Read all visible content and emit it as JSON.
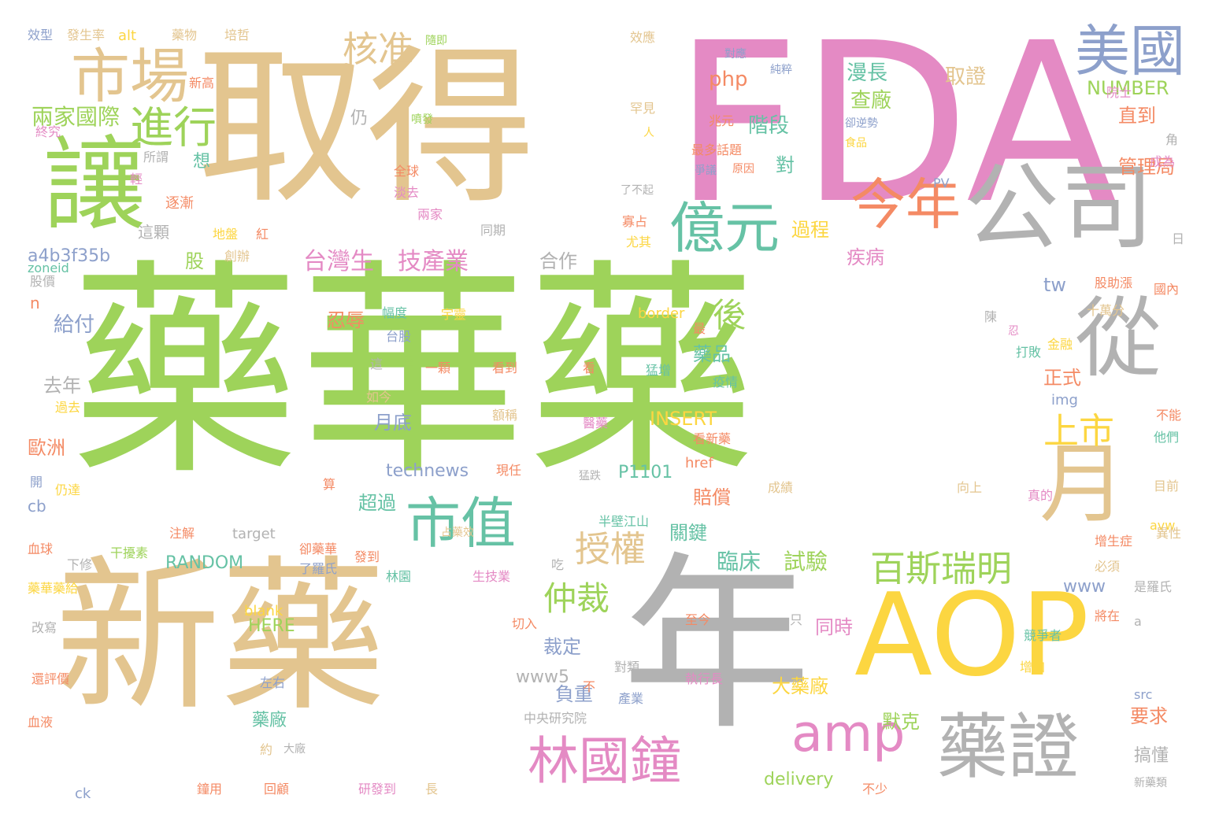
{
  "palette": {
    "green": "#9ed35a",
    "tan": "#e3c58f",
    "gray": "#b2b2b2",
    "pink": "#e48ac4",
    "yellow": "#fcd641",
    "orange": "#f48a64",
    "teal": "#66c2a5",
    "blue": "#8da0cb"
  },
  "words": [
    {
      "text": "藥華藥",
      "color": "green"
    },
    {
      "text": "FDA",
      "color": "pink"
    },
    {
      "text": "取得",
      "color": "tan"
    },
    {
      "text": "新藥",
      "color": "tan"
    },
    {
      "text": "年",
      "color": "gray"
    },
    {
      "text": "AOP",
      "color": "yellow"
    },
    {
      "text": "讓",
      "color": "green"
    },
    {
      "text": "公司",
      "color": "gray"
    },
    {
      "text": "從",
      "color": "gray"
    },
    {
      "text": "月",
      "color": "tan"
    },
    {
      "text": "藥證",
      "color": "gray"
    },
    {
      "text": "市場",
      "color": "tan"
    },
    {
      "text": "美國",
      "color": "blue"
    },
    {
      "text": "億元",
      "color": "teal"
    },
    {
      "text": "今年",
      "color": "orange"
    },
    {
      "text": "市值",
      "color": "teal"
    },
    {
      "text": "林國鐘",
      "color": "pink"
    },
    {
      "text": "amp",
      "color": "pink"
    },
    {
      "text": "進行",
      "color": "green"
    },
    {
      "text": "核准",
      "color": "tan"
    },
    {
      "text": "授權",
      "color": "tan"
    },
    {
      "text": "百斯瑞明",
      "color": "green"
    },
    {
      "text": "上市",
      "color": "yellow"
    },
    {
      "text": "仲裁",
      "color": "green"
    },
    {
      "text": "後",
      "color": "green"
    },
    {
      "text": "台灣生",
      "color": "pink"
    },
    {
      "text": "技產業",
      "color": "pink"
    },
    {
      "text": "臨床",
      "color": "teal"
    },
    {
      "text": "試驗",
      "color": "green"
    },
    {
      "text": "兩家國際",
      "color": "green"
    },
    {
      "text": "漫長",
      "color": "teal"
    },
    {
      "text": "查廠",
      "color": "green"
    },
    {
      "text": "取證",
      "color": "tan"
    },
    {
      "text": "階段",
      "color": "teal"
    },
    {
      "text": "php",
      "color": "orange"
    },
    {
      "text": "NUMBER",
      "color": "green"
    },
    {
      "text": "直到",
      "color": "orange"
    },
    {
      "text": "管理局",
      "color": "orange"
    },
    {
      "text": "過程",
      "color": "yellow"
    },
    {
      "text": "對",
      "color": "teal"
    },
    {
      "text": "疾病",
      "color": "pink"
    },
    {
      "text": "股",
      "color": "green"
    },
    {
      "text": "a4b3f35b",
      "color": "blue"
    },
    {
      "text": "合作",
      "color": "gray"
    },
    {
      "text": "給付",
      "color": "blue"
    },
    {
      "text": "去年",
      "color": "gray"
    },
    {
      "text": "藥品",
      "color": "teal"
    },
    {
      "text": "忍辱",
      "color": "orange"
    },
    {
      "text": "tw",
      "color": "blue"
    },
    {
      "text": "正式",
      "color": "orange"
    },
    {
      "text": "歐洲",
      "color": "orange"
    },
    {
      "text": "月底",
      "color": "blue"
    },
    {
      "text": "INSERT",
      "color": "yellow"
    },
    {
      "text": "technews",
      "color": "blue"
    },
    {
      "text": "P1101",
      "color": "teal"
    },
    {
      "text": "賠償",
      "color": "orange"
    },
    {
      "text": "超過",
      "color": "teal"
    },
    {
      "text": "RANDOM",
      "color": "teal"
    },
    {
      "text": "關鍵",
      "color": "teal"
    },
    {
      "text": "裁定",
      "color": "blue"
    },
    {
      "text": "www",
      "color": "blue"
    },
    {
      "text": "HERE",
      "color": "green"
    },
    {
      "text": "同時",
      "color": "pink"
    },
    {
      "text": "www5",
      "color": "gray"
    },
    {
      "text": "負重",
      "color": "blue"
    },
    {
      "text": "大藥廠",
      "color": "yellow"
    },
    {
      "text": "藥廠",
      "color": "teal"
    },
    {
      "text": "默克",
      "color": "green"
    },
    {
      "text": "要求",
      "color": "orange"
    },
    {
      "text": "delivery",
      "color": "green"
    },
    {
      "text": "搞懂",
      "color": "gray"
    },
    {
      "text": "仍",
      "color": "gray"
    },
    {
      "text": "想",
      "color": "teal"
    },
    {
      "text": "逐漸",
      "color": "orange"
    },
    {
      "text": "這顆",
      "color": "gray"
    },
    {
      "text": "cb",
      "color": "blue"
    },
    {
      "text": "n",
      "color": "orange"
    },
    {
      "text": "img",
      "color": "blue"
    },
    {
      "text": "href",
      "color": "orange"
    },
    {
      "text": "border",
      "color": "yellow"
    },
    {
      "text": "target",
      "color": "gray"
    },
    {
      "text": "blank",
      "color": "yellow"
    },
    {
      "text": "src",
      "color": "blue"
    },
    {
      "text": "ck",
      "color": "blue"
    },
    {
      "text": "zoneid",
      "color": "teal"
    },
    {
      "text": "alt",
      "color": "yellow"
    },
    {
      "text": "PV",
      "color": "blue"
    },
    {
      "text": "a",
      "color": "gray"
    },
    {
      "text": "avw",
      "color": "yellow"
    },
    {
      "text": "效型",
      "color": "blue"
    },
    {
      "text": "發生率",
      "color": "tan"
    },
    {
      "text": "藥物",
      "color": "tan"
    },
    {
      "text": "培哲",
      "color": "tan"
    },
    {
      "text": "隨即",
      "color": "green"
    },
    {
      "text": "效應",
      "color": "tan"
    },
    {
      "text": "對應",
      "color": "blue"
    },
    {
      "text": "純粹",
      "color": "blue"
    },
    {
      "text": "院士",
      "color": "pink"
    },
    {
      "text": "新高",
      "color": "orange"
    },
    {
      "text": "罕見",
      "color": "tan"
    },
    {
      "text": "兆元",
      "color": "orange"
    },
    {
      "text": "卻逆勢",
      "color": "blue"
    },
    {
      "text": "食品",
      "color": "yellow"
    },
    {
      "text": "噴發",
      "color": "green"
    },
    {
      "text": "終究",
      "color": "pink"
    },
    {
      "text": "所謂",
      "color": "gray"
    },
    {
      "text": "人",
      "color": "yellow"
    },
    {
      "text": "最多話題",
      "color": "orange"
    },
    {
      "text": "原因",
      "color": "orange"
    },
    {
      "text": "爭議",
      "color": "blue"
    },
    {
      "text": "成為",
      "color": "pink"
    },
    {
      "text": "角",
      "color": "gray"
    },
    {
      "text": "輕",
      "color": "pink"
    },
    {
      "text": "全球",
      "color": "orange"
    },
    {
      "text": "淡去",
      "color": "pink"
    },
    {
      "text": "了不起",
      "color": "gray"
    },
    {
      "text": "兩家",
      "color": "pink"
    },
    {
      "text": "寡占",
      "color": "orange"
    },
    {
      "text": "地盤",
      "color": "yellow"
    },
    {
      "text": "紅",
      "color": "orange"
    },
    {
      "text": "同期",
      "color": "gray"
    },
    {
      "text": "尤其",
      "color": "yellow"
    },
    {
      "text": "日",
      "color": "gray"
    },
    {
      "text": "創辦",
      "color": "tan"
    },
    {
      "text": "股價",
      "color": "gray"
    },
    {
      "text": "股助漲",
      "color": "orange"
    },
    {
      "text": "國內",
      "color": "orange"
    },
    {
      "text": "幅度",
      "color": "teal"
    },
    {
      "text": "台股",
      "color": "blue"
    },
    {
      "text": "宇靈",
      "color": "yellow"
    },
    {
      "text": "十萬分",
      "color": "tan"
    },
    {
      "text": "陳",
      "color": "gray"
    },
    {
      "text": "金融",
      "color": "yellow"
    },
    {
      "text": "最",
      "color": "orange"
    },
    {
      "text": "忍",
      "color": "pink"
    },
    {
      "text": "這",
      "color": "gray"
    },
    {
      "text": "靈",
      "color": "green"
    },
    {
      "text": "一顆",
      "color": "orange"
    },
    {
      "text": "看到",
      "color": "orange"
    },
    {
      "text": "看",
      "color": "orange"
    },
    {
      "text": "猛增",
      "color": "teal"
    },
    {
      "text": "打敗",
      "color": "teal"
    },
    {
      "text": "疫情",
      "color": "teal"
    },
    {
      "text": "如今",
      "color": "tan"
    },
    {
      "text": "過去",
      "color": "yellow"
    },
    {
      "text": "額稱",
      "color": "tan"
    },
    {
      "text": "醫藥",
      "color": "pink"
    },
    {
      "text": "看新藥",
      "color": "orange"
    },
    {
      "text": "不能",
      "color": "orange"
    },
    {
      "text": "他們",
      "color": "teal"
    },
    {
      "text": "開",
      "color": "blue"
    },
    {
      "text": "仍達",
      "color": "yellow"
    },
    {
      "text": "現任",
      "color": "orange"
    },
    {
      "text": "猛跌",
      "color": "gray"
    },
    {
      "text": "算",
      "color": "orange"
    },
    {
      "text": "成績",
      "color": "tan"
    },
    {
      "text": "向上",
      "color": "tan"
    },
    {
      "text": "真的",
      "color": "pink"
    },
    {
      "text": "目前",
      "color": "tan"
    },
    {
      "text": "注解",
      "color": "orange"
    },
    {
      "text": "半壁江山",
      "color": "teal"
    },
    {
      "text": "卻藥華",
      "color": "orange"
    },
    {
      "text": "占藥效",
      "color": "tan"
    },
    {
      "text": "異性",
      "color": "tan"
    },
    {
      "text": "增生症",
      "color": "orange"
    },
    {
      "text": "血球",
      "color": "orange"
    },
    {
      "text": "下修",
      "color": "gray"
    },
    {
      "text": "干擾素",
      "color": "green"
    },
    {
      "text": "了羅氏",
      "color": "blue"
    },
    {
      "text": "發到",
      "color": "orange"
    },
    {
      "text": "林園",
      "color": "teal"
    },
    {
      "text": "生技業",
      "color": "pink"
    },
    {
      "text": "吃",
      "color": "gray"
    },
    {
      "text": "必須",
      "color": "tan"
    },
    {
      "text": "是羅氏",
      "color": "gray"
    },
    {
      "text": "藥華藥給",
      "color": "yellow"
    },
    {
      "text": "改寫",
      "color": "gray"
    },
    {
      "text": "切入",
      "color": "orange"
    },
    {
      "text": "至今",
      "color": "orange"
    },
    {
      "text": "只",
      "color": "gray"
    },
    {
      "text": "將在",
      "color": "orange"
    },
    {
      "text": "競爭者",
      "color": "teal"
    },
    {
      "text": "還評價",
      "color": "orange"
    },
    {
      "text": "左右",
      "color": "blue"
    },
    {
      "text": "不",
      "color": "orange"
    },
    {
      "text": "對類",
      "color": "gray"
    },
    {
      "text": "執行長",
      "color": "pink"
    },
    {
      "text": "增加",
      "color": "yellow"
    },
    {
      "text": "產業",
      "color": "blue"
    },
    {
      "text": "中央研究院",
      "color": "gray"
    },
    {
      "text": "血液",
      "color": "orange"
    },
    {
      "text": "約",
      "color": "tan"
    },
    {
      "text": "大廠",
      "color": "gray"
    },
    {
      "text": "鐘用",
      "color": "orange"
    },
    {
      "text": "回顧",
      "color": "orange"
    },
    {
      "text": "研發到",
      "color": "pink"
    },
    {
      "text": "長",
      "color": "tan"
    },
    {
      "text": "不少",
      "color": "orange"
    },
    {
      "text": "新藥類",
      "color": "gray"
    }
  ]
}
